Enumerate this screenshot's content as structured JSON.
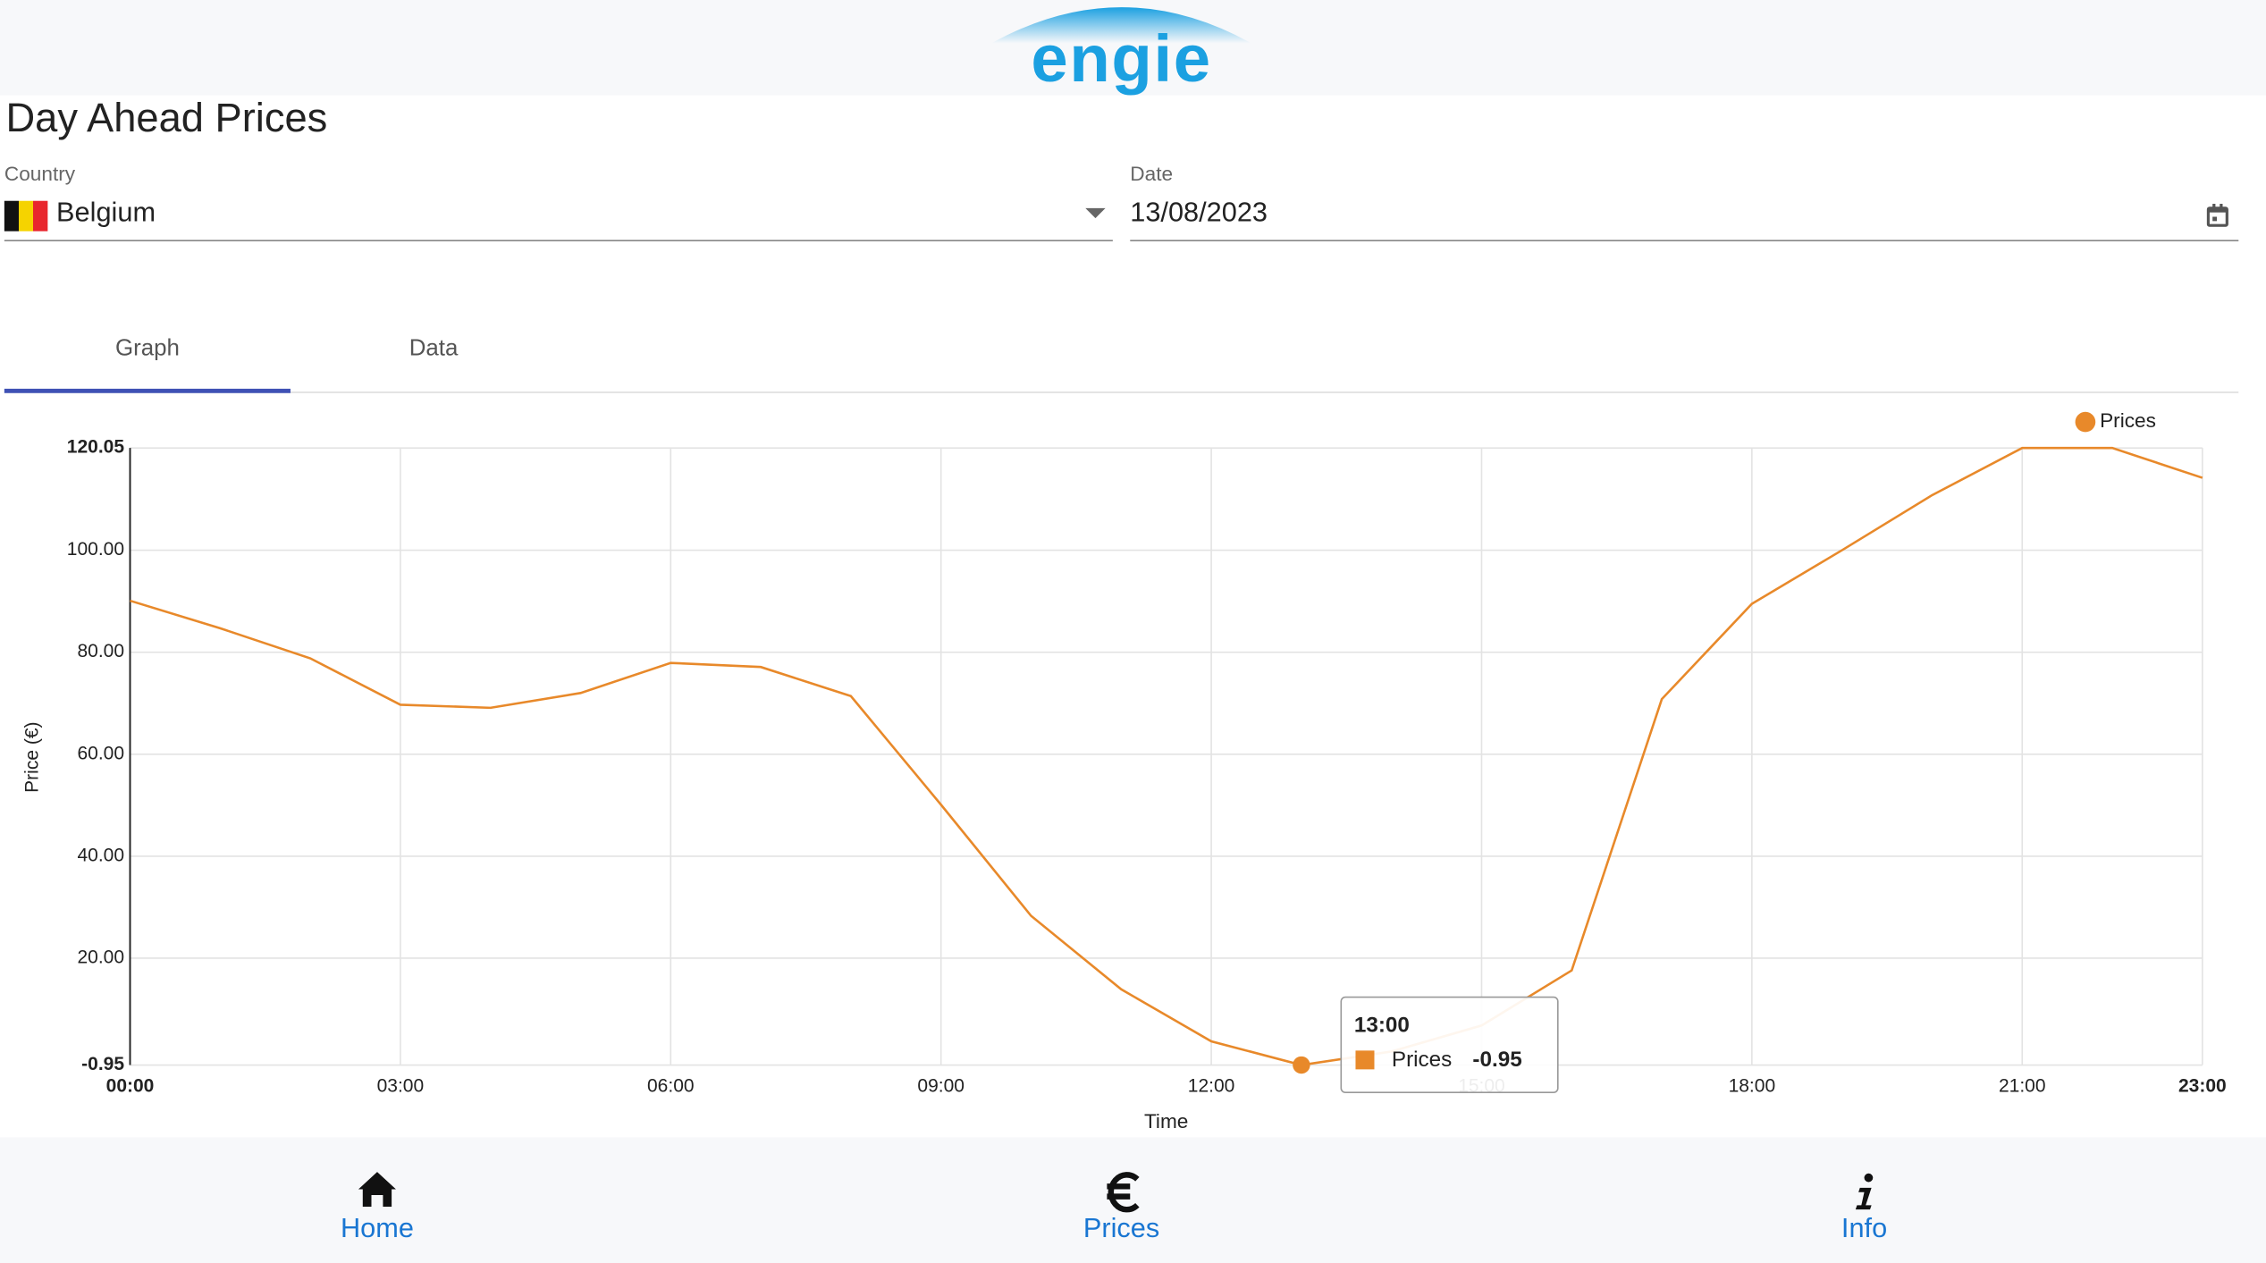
{
  "header": {
    "logo": "engie"
  },
  "page": {
    "title": "Day Ahead Prices",
    "country_label": "Country",
    "country": "Belgium",
    "date_label": "Date",
    "date": "13/08/2023"
  },
  "tabs": [
    "Graph",
    "Data"
  ],
  "chart_data": {
    "type": "line",
    "y_label": "Price (€)",
    "x_label": "Time",
    "categories": [
      "00:00",
      null,
      null,
      "03:00",
      null,
      null,
      "06:00",
      null,
      null,
      "09:00",
      null,
      null,
      "12:00",
      null,
      null,
      "15:00",
      null,
      null,
      "18:00",
      null,
      null,
      "21:00",
      null,
      "23:00"
    ],
    "series": [
      {
        "name": "Prices",
        "color": "#e8892a",
        "values": [
          90.1,
          84.7,
          78.8,
          69.7,
          69.1,
          72.0,
          77.9,
          77.1,
          71.4,
          50.1,
          28.3,
          13.9,
          3.7,
          -0.95,
          1.7,
          6.8,
          17.6,
          70.8,
          89.5,
          100.0,
          110.8,
          120.05,
          120.05,
          114.2
        ]
      }
    ],
    "ylim": [
      -0.95,
      120.05
    ],
    "yticks": [
      -0.95,
      {
        "value": 20,
        "label": "20.00"
      },
      {
        "value": 40,
        "label": "40.00"
      },
      {
        "value": 60,
        "label": "60.00"
      },
      {
        "value": 80,
        "label": "80.00"
      },
      {
        "value": 100,
        "label": "100.00"
      },
      120.05
    ],
    "grid": true,
    "legend": "top-right",
    "tooltip": {
      "title": "13:00",
      "series": "Prices",
      "value": -0.95
    }
  },
  "nav": [
    "Home",
    "Prices",
    "Info"
  ]
}
